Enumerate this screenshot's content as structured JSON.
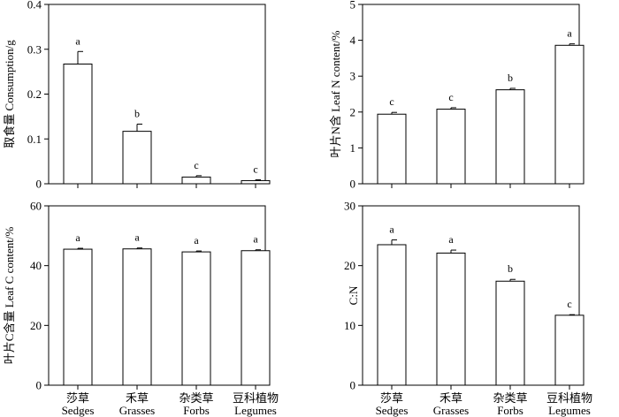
{
  "chart_data": [
    {
      "type": "bar",
      "ylabel": "取食量 Consumption/g",
      "ylim": [
        0,
        0.4
      ],
      "yticks": [
        0,
        0.1,
        0.2,
        0.3,
        0.4
      ],
      "ytick_labels": [
        "0",
        "0.1",
        "0.2",
        "0.3",
        "0.4"
      ],
      "categories_cn": [
        "莎草",
        "禾草",
        "杂类草",
        "豆科植物"
      ],
      "categories_en": [
        "Sedges",
        "Grasses",
        "Forbs",
        "Legumes"
      ],
      "values": [
        0.267,
        0.117,
        0.015,
        0.007
      ],
      "errors": [
        0.028,
        0.016,
        0.003,
        0.002
      ],
      "significance": [
        "a",
        "b",
        "c",
        "c"
      ]
    },
    {
      "type": "bar",
      "ylabel": "叶片N含 Leaf N content/%",
      "ylim": [
        0,
        5
      ],
      "yticks": [
        0,
        1,
        2,
        3,
        4,
        5
      ],
      "ytick_labels": [
        "0",
        "1",
        "2",
        "3",
        "4",
        "5"
      ],
      "categories_cn": [
        "莎草",
        "禾草",
        "杂类草",
        "豆科植物"
      ],
      "categories_en": [
        "Sedges",
        "Grasses",
        "Forbs",
        "Legumes"
      ],
      "values": [
        1.94,
        2.08,
        2.62,
        3.86
      ],
      "errors": [
        0.05,
        0.04,
        0.04,
        0.04
      ],
      "significance": [
        "c",
        "c",
        "b",
        "a"
      ]
    },
    {
      "type": "bar",
      "ylabel": "叶片C含量 Leaf C content/%",
      "ylim": [
        0,
        60
      ],
      "yticks": [
        0,
        20,
        40,
        60
      ],
      "ytick_labels": [
        "0",
        "20",
        "40",
        "60"
      ],
      "categories_cn": [
        "莎草",
        "禾草",
        "杂类草",
        "豆科植物"
      ],
      "categories_en": [
        "Sedges",
        "Grasses",
        "Forbs",
        "Legumes"
      ],
      "values": [
        45.5,
        45.6,
        44.6,
        45.0
      ],
      "errors": [
        0.3,
        0.3,
        0.3,
        0.3
      ],
      "significance": [
        "a",
        "a",
        "a",
        "a"
      ]
    },
    {
      "type": "bar",
      "ylabel": "C:N",
      "ylim": [
        0,
        30
      ],
      "yticks": [
        0,
        10,
        20,
        30
      ],
      "ytick_labels": [
        "0",
        "10",
        "20",
        "30"
      ],
      "categories_cn": [
        "莎草",
        "禾草",
        "杂类草",
        "豆科植物"
      ],
      "categories_en": [
        "Sedges",
        "Grasses",
        "Forbs",
        "Legumes"
      ],
      "values": [
        23.5,
        22.1,
        17.4,
        11.7
      ],
      "errors": [
        0.8,
        0.5,
        0.3,
        0.1
      ],
      "significance": [
        "a",
        "a",
        "b",
        "c"
      ]
    }
  ]
}
